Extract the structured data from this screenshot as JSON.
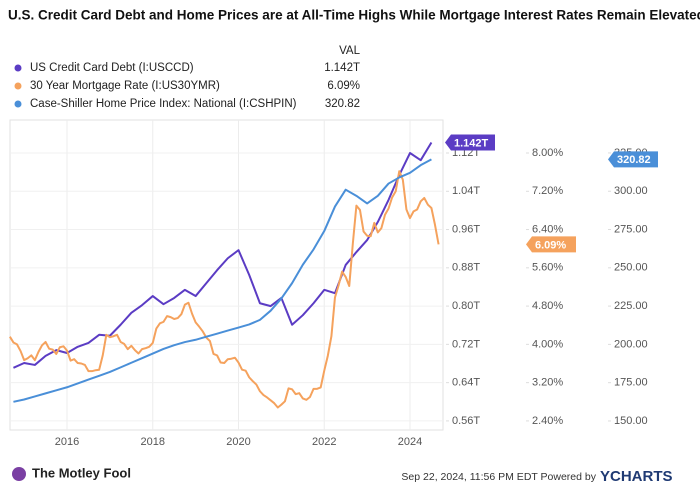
{
  "chart_data": {
    "type": "line",
    "title": "U.S. Credit Card Debt and Home Prices are at All-Time Highs While Mortgage Interest Rates Remain Elevated",
    "legend_header": "VAL",
    "footer_left": "The Motley Fool",
    "footer_timestamp": "Sep 22, 2024, 11:56 PM EDT Powered by",
    "footer_brand": "YCHARTS",
    "xlim": [
      2014.67,
      2024.77
    ],
    "xticks": [
      2016,
      2018,
      2020,
      2022,
      2024
    ],
    "ylim": [
      0.541,
      1.189
    ],
    "yticks": [
      {
        "value": 0.56,
        "label": "0.56T"
      },
      {
        "value": 0.64,
        "label": "0.64T"
      },
      {
        "value": 0.72,
        "label": "0.72T"
      },
      {
        "value": 0.8,
        "label": "0.80T"
      },
      {
        "value": 0.88,
        "label": "0.88T"
      },
      {
        "value": 0.96,
        "label": "0.96T"
      },
      {
        "value": 1.04,
        "label": "1.04T"
      },
      {
        "value": 1.12,
        "label": "1.12T"
      }
    ],
    "y2lim": [
      2.21,
      8.69
    ],
    "y2ticks": [
      {
        "value": 2.4,
        "label": "2.40%"
      },
      {
        "value": 3.2,
        "label": "3.20%"
      },
      {
        "value": 4,
        "label": "4.00%"
      },
      {
        "value": 4.8,
        "label": "4.80%"
      },
      {
        "value": 5.6,
        "label": "5.60%"
      },
      {
        "value": 6.4,
        "label": "6.40%"
      },
      {
        "value": 7.2,
        "label": "7.20%"
      },
      {
        "value": 8,
        "label": "8.00%"
      }
    ],
    "y3lim": [
      144.1,
      346.5
    ],
    "y3ticks": [
      {
        "value": 150,
        "label": "150.00"
      },
      {
        "value": 175,
        "label": "175.00"
      },
      {
        "value": 200,
        "label": "200.00"
      },
      {
        "value": 225,
        "label": "225.00"
      },
      {
        "value": 250,
        "label": "250.00"
      },
      {
        "value": 275,
        "label": "275.00"
      },
      {
        "value": 300,
        "label": "300.00"
      },
      {
        "value": 325,
        "label": "325.00"
      }
    ],
    "grid": true,
    "series": [
      {
        "name": "US Credit Card Debt (I:USCCD)",
        "color": "#5b3cc4",
        "axis": "y",
        "current": {
          "value": 1.142,
          "label": "1.142T"
        },
        "x": [
          2014.75,
          2015,
          2015.25,
          2015.5,
          2015.75,
          2016,
          2016.25,
          2016.5,
          2016.75,
          2017,
          2017.25,
          2017.5,
          2017.75,
          2018,
          2018.25,
          2018.5,
          2018.75,
          2019,
          2019.25,
          2019.5,
          2019.75,
          2020,
          2020.25,
          2020.5,
          2020.75,
          2021,
          2021.25,
          2021.5,
          2021.75,
          2022,
          2022.25,
          2022.5,
          2022.75,
          2023,
          2023.25,
          2023.5,
          2023.75,
          2024,
          2024.25,
          2024.5
        ],
        "values": [
          0.671,
          0.681,
          0.677,
          0.696,
          0.708,
          0.702,
          0.715,
          0.723,
          0.74,
          0.738,
          0.761,
          0.786,
          0.802,
          0.821,
          0.804,
          0.817,
          0.834,
          0.821,
          0.848,
          0.875,
          0.9,
          0.917,
          0.865,
          0.806,
          0.8,
          0.817,
          0.761,
          0.781,
          0.806,
          0.834,
          0.827,
          0.886,
          0.913,
          0.938,
          0.976,
          1.022,
          1.074,
          1.12,
          1.105,
          1.142
        ]
      },
      {
        "name": "30 Year Mortgage Rate (I:US30YMR)",
        "color": "#f5a25d",
        "axis": "y2",
        "current": {
          "value": 6.09,
          "label": "6.09%"
        },
        "x": [
          2014.667,
          2014.75,
          2014.833,
          2014.917,
          2015,
          2015.083,
          2015.167,
          2015.25,
          2015.333,
          2015.417,
          2015.5,
          2015.583,
          2015.667,
          2015.75,
          2015.833,
          2015.917,
          2016,
          2016.083,
          2016.167,
          2016.25,
          2016.333,
          2016.417,
          2016.5,
          2016.583,
          2016.667,
          2016.75,
          2016.833,
          2016.917,
          2017,
          2017.083,
          2017.167,
          2017.25,
          2017.333,
          2017.417,
          2017.5,
          2017.583,
          2017.667,
          2017.75,
          2017.833,
          2017.917,
          2018,
          2018.083,
          2018.167,
          2018.25,
          2018.333,
          2018.417,
          2018.5,
          2018.583,
          2018.667,
          2018.75,
          2018.833,
          2018.917,
          2019,
          2019.083,
          2019.167,
          2019.25,
          2019.333,
          2019.417,
          2019.5,
          2019.583,
          2019.667,
          2019.75,
          2019.833,
          2019.917,
          2020,
          2020.083,
          2020.167,
          2020.25,
          2020.333,
          2020.417,
          2020.5,
          2020.583,
          2020.667,
          2020.75,
          2020.833,
          2020.917,
          2021,
          2021.083,
          2021.167,
          2021.25,
          2021.333,
          2021.417,
          2021.5,
          2021.583,
          2021.667,
          2021.75,
          2021.833,
          2021.917,
          2022,
          2022.083,
          2022.167,
          2022.25,
          2022.333,
          2022.417,
          2022.5,
          2022.583,
          2022.667,
          2022.75,
          2022.833,
          2022.917,
          2023,
          2023.083,
          2023.167,
          2023.25,
          2023.333,
          2023.417,
          2023.5,
          2023.583,
          2023.667,
          2023.75,
          2023.833,
          2023.917,
          2024,
          2024.083,
          2024.167,
          2024.25,
          2024.333,
          2024.417,
          2024.5,
          2024.583,
          2024.667
        ],
        "values": [
          4.16,
          4.04,
          4.0,
          3.86,
          3.67,
          3.71,
          3.77,
          3.67,
          3.84,
          3.98,
          4.05,
          3.91,
          3.89,
          3.8,
          3.94,
          3.96,
          3.87,
          3.66,
          3.69,
          3.61,
          3.6,
          3.57,
          3.44,
          3.44,
          3.46,
          3.47,
          3.77,
          4.2,
          4.15,
          4.17,
          4.2,
          4.05,
          4.01,
          3.9,
          3.97,
          3.88,
          3.81,
          3.9,
          3.92,
          3.95,
          4.03,
          4.33,
          4.44,
          4.47,
          4.59,
          4.57,
          4.53,
          4.55,
          4.63,
          4.83,
          4.87,
          4.64,
          4.46,
          4.37,
          4.27,
          4.14,
          4.07,
          3.8,
          3.77,
          3.62,
          3.61,
          3.69,
          3.7,
          3.72,
          3.62,
          3.47,
          3.45,
          3.31,
          3.23,
          3.16,
          3.02,
          2.94,
          2.89,
          2.83,
          2.77,
          2.68,
          2.74,
          2.81,
          3.08,
          3.06,
          2.96,
          2.98,
          2.87,
          2.84,
          2.9,
          3.07,
          3.07,
          3.1,
          3.45,
          3.76,
          4.17,
          4.98,
          5.23,
          5.52,
          5.41,
          5.22,
          6.11,
          6.9,
          6.81,
          6.36,
          6.27,
          6.26,
          6.54,
          6.34,
          6.43,
          6.71,
          6.84,
          7.07,
          7.2,
          7.62,
          7.44,
          6.82,
          6.64,
          6.78,
          6.82,
          6.99,
          7.06,
          6.92,
          6.85,
          6.5,
          6.09
        ]
      },
      {
        "name": "Case-Shiller Home Price Index: National (I:CSHPIN)",
        "color": "#4a8fd8",
        "axis": "y3",
        "current": {
          "value": 320.82,
          "label": "320.82"
        },
        "x": [
          2014.75,
          2015,
          2015.25,
          2015.5,
          2015.75,
          2016,
          2016.25,
          2016.5,
          2016.75,
          2017,
          2017.25,
          2017.5,
          2017.75,
          2018,
          2018.25,
          2018.5,
          2018.75,
          2019,
          2019.25,
          2019.5,
          2019.75,
          2020,
          2020.25,
          2020.5,
          2020.75,
          2021,
          2021.25,
          2021.5,
          2021.75,
          2022,
          2022.25,
          2022.5,
          2022.75,
          2023,
          2023.25,
          2023.5,
          2023.75,
          2024,
          2024.25,
          2024.5
        ],
        "values": [
          162.5,
          164,
          166,
          168,
          170,
          172,
          174.5,
          177,
          179.5,
          182,
          185,
          188,
          191,
          194,
          197,
          199.5,
          201.5,
          203,
          205,
          207,
          209,
          211,
          213,
          216,
          222,
          230,
          240,
          252,
          262,
          274,
          290,
          301,
          297,
          292,
          297,
          305,
          309,
          312,
          317,
          320.82
        ]
      }
    ]
  }
}
